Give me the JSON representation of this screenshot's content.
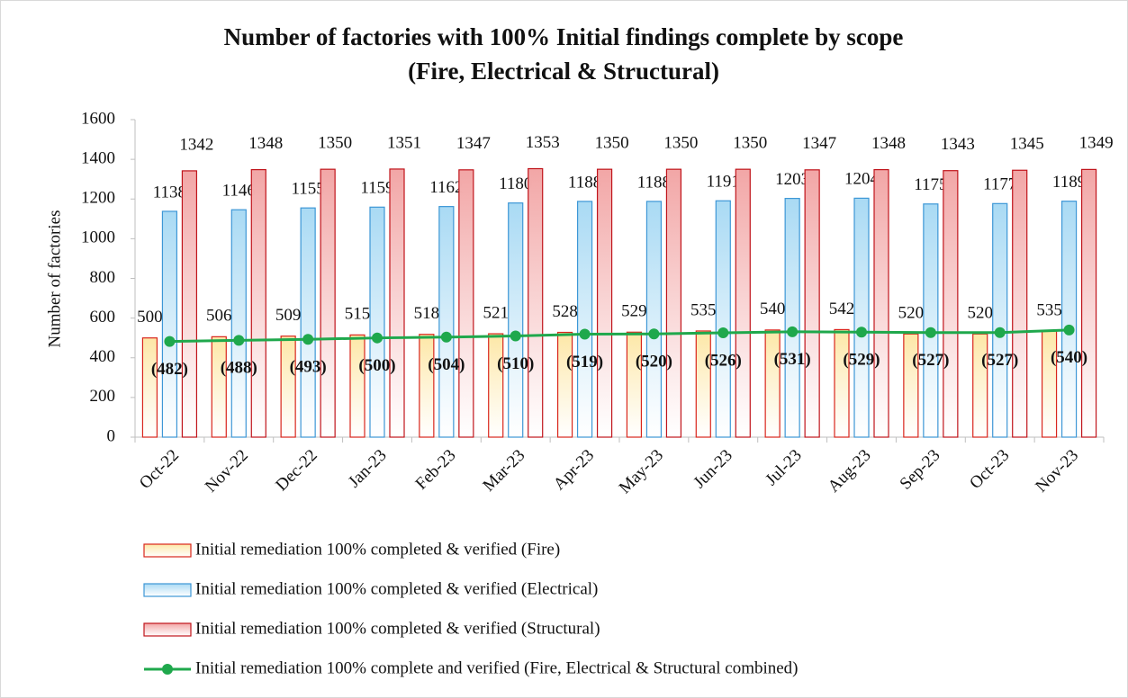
{
  "chart_data": {
    "type": "bar",
    "title": [
      "Number of factories with 100% Initial findings complete by scope",
      "(Fire, Electrical & Structural)"
    ],
    "y_label": "Number of factories",
    "categories": [
      "Oct-22",
      "Nov-22",
      "Dec-22",
      "Jan-23",
      "Feb-23",
      "Mar-23",
      "Apr-23",
      "May-23",
      "Jun-23",
      "Jul-23",
      "Aug-23",
      "Sep-23",
      "Oct-23",
      "Nov-23"
    ],
    "series": [
      {
        "name": "Initial remediation 100% completed & verified (Fire)",
        "type": "bar",
        "color": "#fde7a6",
        "edge_color": "#d9261c",
        "values": [
          500,
          506,
          509,
          515,
          518,
          521,
          528,
          529,
          535,
          540,
          542,
          520,
          520,
          535
        ]
      },
      {
        "name": "Initial remediation 100% completed & verified (Electrical)",
        "type": "bar",
        "color": "#a9daf4",
        "edge_color": "#3d97d6",
        "values": [
          1138,
          1146,
          1155,
          1159,
          1162,
          1180,
          1188,
          1188,
          1191,
          1203,
          1204,
          1175,
          1177,
          1189
        ]
      },
      {
        "name": "Initial remediation 100% completed & verified (Structural)",
        "type": "bar",
        "color": "#f2a6a6",
        "edge_color": "#c0141b",
        "values": [
          1342,
          1348,
          1350,
          1351,
          1347,
          1353,
          1350,
          1350,
          1350,
          1347,
          1348,
          1343,
          1345,
          1349
        ]
      },
      {
        "name": "Initial remediation 100% complete and verified (Fire, Electrical & Structural combined)",
        "type": "line",
        "color": "#1fa84c",
        "values": [
          482,
          488,
          493,
          500,
          504,
          510,
          519,
          520,
          526,
          531,
          529,
          527,
          527,
          540
        ],
        "value_labels": [
          "(482)",
          "(488)",
          "(493)",
          "(500)",
          "(504)",
          "(510)",
          "(519)",
          "(520)",
          "(526)",
          "(531)",
          "(529)",
          "(527)",
          "(527)",
          "(540)"
        ]
      }
    ],
    "ylim": [
      0,
      1600
    ],
    "yticks": [
      0,
      200,
      400,
      600,
      800,
      1000,
      1200,
      1400,
      1600
    ],
    "grid": false
  }
}
